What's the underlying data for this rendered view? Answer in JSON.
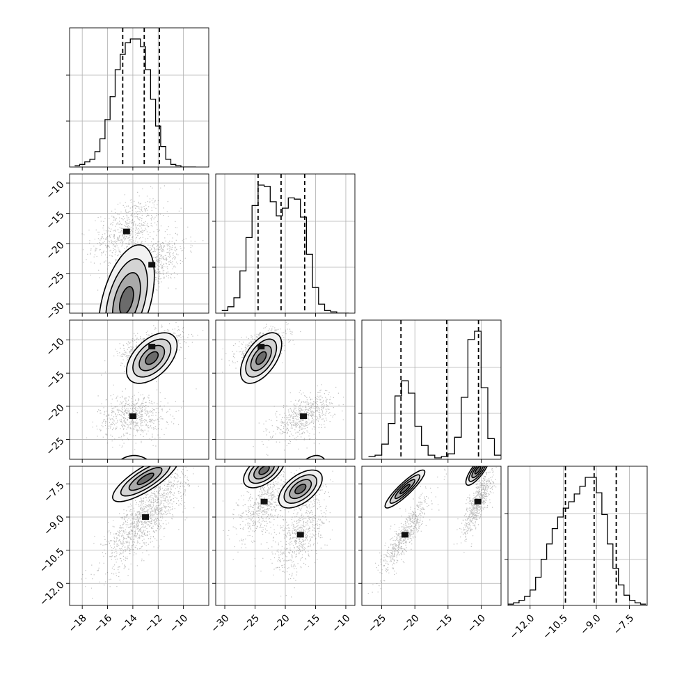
{
  "chart_data": {
    "type": "corner",
    "title": "",
    "parameters": [
      {
        "name": "",
        "range": [
          -19,
          -8
        ],
        "ticks": [
          -18,
          -16,
          -14,
          -12,
          -10
        ],
        "tick_labels": [
          "−18",
          "−16",
          "−14",
          "−12",
          "−10"
        ]
      },
      {
        "name": "",
        "range": [
          -31.5,
          -8.5
        ],
        "ticks": [
          -30,
          -25,
          -20,
          -15,
          -10
        ],
        "tick_labels": [
          "−30",
          "−25",
          "−20",
          "−15",
          "−10"
        ]
      },
      {
        "name": "",
        "range": [
          -28,
          -7
        ],
        "ticks": [
          -25,
          -20,
          -15,
          -10
        ],
        "tick_labels": [
          "−25",
          "−20",
          "−15",
          "−10"
        ]
      },
      {
        "name": "",
        "range": [
          -13,
          -6.7
        ],
        "ticks": [
          -12.0,
          -10.5,
          -9.0,
          -7.5
        ],
        "tick_labels": [
          "−12.0",
          "−10.5",
          "−9.0",
          "−7.5"
        ]
      }
    ],
    "marginals": [
      {
        "bins": [
          -18.6,
          -18.2,
          -17.8,
          -17.4,
          -17.0,
          -16.6,
          -16.2,
          -15.8,
          -15.4,
          -15.0,
          -14.6,
          -14.2,
          -13.8,
          -13.4,
          -13.0,
          -12.6,
          -12.2,
          -11.8,
          -11.4,
          -11.0,
          -10.6,
          -10.2,
          -9.8,
          -9.4,
          -9.0
        ],
        "counts": [
          0.01,
          0.02,
          0.04,
          0.06,
          0.12,
          0.22,
          0.37,
          0.55,
          0.76,
          0.88,
          0.97,
          1.0,
          1.0,
          0.94,
          0.76,
          0.53,
          0.32,
          0.16,
          0.06,
          0.02,
          0.01,
          0.0,
          0.0,
          0.0
        ],
        "quantiles": [
          -14.8,
          -13.1,
          -11.9
        ]
      },
      {
        "bins": [
          -30.5,
          -29.5,
          -28.5,
          -27.5,
          -26.5,
          -25.5,
          -24.5,
          -23.5,
          -22.5,
          -21.5,
          -20.5,
          -19.5,
          -18.5,
          -17.5,
          -16.5,
          -15.5,
          -14.5,
          -13.5,
          -12.5,
          -11.5,
          -10.5,
          -9.5
        ],
        "counts": [
          0.02,
          0.05,
          0.12,
          0.33,
          0.59,
          0.84,
          1.0,
          0.99,
          0.87,
          0.76,
          0.82,
          0.9,
          0.89,
          0.75,
          0.46,
          0.2,
          0.07,
          0.02,
          0.01,
          0.0,
          0.0
        ],
        "quantiles": [
          -24.5,
          -20.7,
          -16.8
        ]
      },
      {
        "bins": [
          -27.0,
          -26.0,
          -25.0,
          -24.0,
          -23.0,
          -22.0,
          -21.0,
          -20.0,
          -19.0,
          -18.0,
          -17.0,
          -16.0,
          -15.0,
          -14.0,
          -13.0,
          -12.0,
          -11.0,
          -10.0,
          -9.0,
          -8.0,
          -7.0
        ],
        "counts": [
          0.02,
          0.03,
          0.11,
          0.26,
          0.46,
          0.57,
          0.48,
          0.24,
          0.1,
          0.03,
          0.01,
          0.02,
          0.04,
          0.16,
          0.45,
          0.87,
          0.93,
          0.52,
          0.15,
          0.03
        ],
        "quantiles": [
          -22.1,
          -15.2,
          -10.4
        ]
      },
      {
        "bins": [
          -13.0,
          -12.75,
          -12.5,
          -12.25,
          -12.0,
          -11.75,
          -11.5,
          -11.25,
          -11.0,
          -10.75,
          -10.5,
          -10.25,
          -10.0,
          -9.75,
          -9.5,
          -9.25,
          -9.0,
          -8.75,
          -8.5,
          -8.25,
          -8.0,
          -7.75,
          -7.5,
          -7.25,
          -7.0,
          -6.75
        ],
        "counts": [
          0.01,
          0.02,
          0.04,
          0.07,
          0.12,
          0.22,
          0.36,
          0.48,
          0.6,
          0.69,
          0.76,
          0.81,
          0.87,
          0.93,
          1.0,
          1.0,
          0.88,
          0.71,
          0.48,
          0.29,
          0.16,
          0.08,
          0.04,
          0.02,
          0.01
        ],
        "quantiles": [
          -10.4,
          -9.1,
          -8.1
        ]
      }
    ],
    "joint_modes": [
      {
        "x_param": 0,
        "y_param": 1,
        "modes": [
          {
            "mean": [
              -14.5,
              -18.0
            ],
            "sd": [
              1.1,
              2.2
            ],
            "corr": 0.45,
            "w": 0.5
          },
          {
            "mean": [
              -12.5,
              -23.5
            ],
            "sd": [
              1.1,
              2.0
            ],
            "corr": 0.6,
            "w": 0.5
          }
        ]
      },
      {
        "x_param": 0,
        "y_param": 2,
        "modes": [
          {
            "mean": [
              -12.5,
              -11.0
            ],
            "sd": [
              1.0,
              1.0
            ],
            "corr": 0.5,
            "w": 0.5
          },
          {
            "mean": [
              -14.0,
              -21.5
            ],
            "sd": [
              1.1,
              1.4
            ],
            "corr": 0.05,
            "w": 0.5
          }
        ]
      },
      {
        "x_param": 1,
        "y_param": 2,
        "modes": [
          {
            "mean": [
              -24.0,
              -11.0
            ],
            "sd": [
              1.7,
              1.0
            ],
            "corr": 0.55,
            "w": 0.5
          },
          {
            "mean": [
              -17.0,
              -21.5
            ],
            "sd": [
              2.0,
              1.4
            ],
            "corr": 0.55,
            "w": 0.5
          }
        ]
      },
      {
        "x_param": 0,
        "y_param": 3,
        "modes": [
          {
            "mean": [
              -13.0,
              -9.0
            ],
            "sd": [
              1.3,
              0.9
            ],
            "corr": 0.8,
            "w": 1.0
          }
        ]
      },
      {
        "x_param": 1,
        "y_param": 3,
        "modes": [
          {
            "mean": [
              -23.5,
              -8.3
            ],
            "sd": [
              1.7,
              0.7
            ],
            "corr": 0.55,
            "w": 0.5
          },
          {
            "mean": [
              -17.5,
              -9.8
            ],
            "sd": [
              1.8,
              0.75
            ],
            "corr": 0.55,
            "w": 0.5
          }
        ]
      },
      {
        "x_param": 2,
        "y_param": 3,
        "modes": [
          {
            "mean": [
              -21.5,
              -9.8
            ],
            "sd": [
              1.5,
              0.75
            ],
            "corr": 0.9,
            "w": 0.5
          },
          {
            "mean": [
              -10.5,
              -8.3
            ],
            "sd": [
              0.9,
              0.6
            ],
            "corr": 0.8,
            "w": 0.5
          }
        ]
      }
    ],
    "contour_levels_sigma": [
      0.5,
      1.0,
      1.5,
      2.0
    ],
    "grid": true,
    "legend": "none"
  }
}
